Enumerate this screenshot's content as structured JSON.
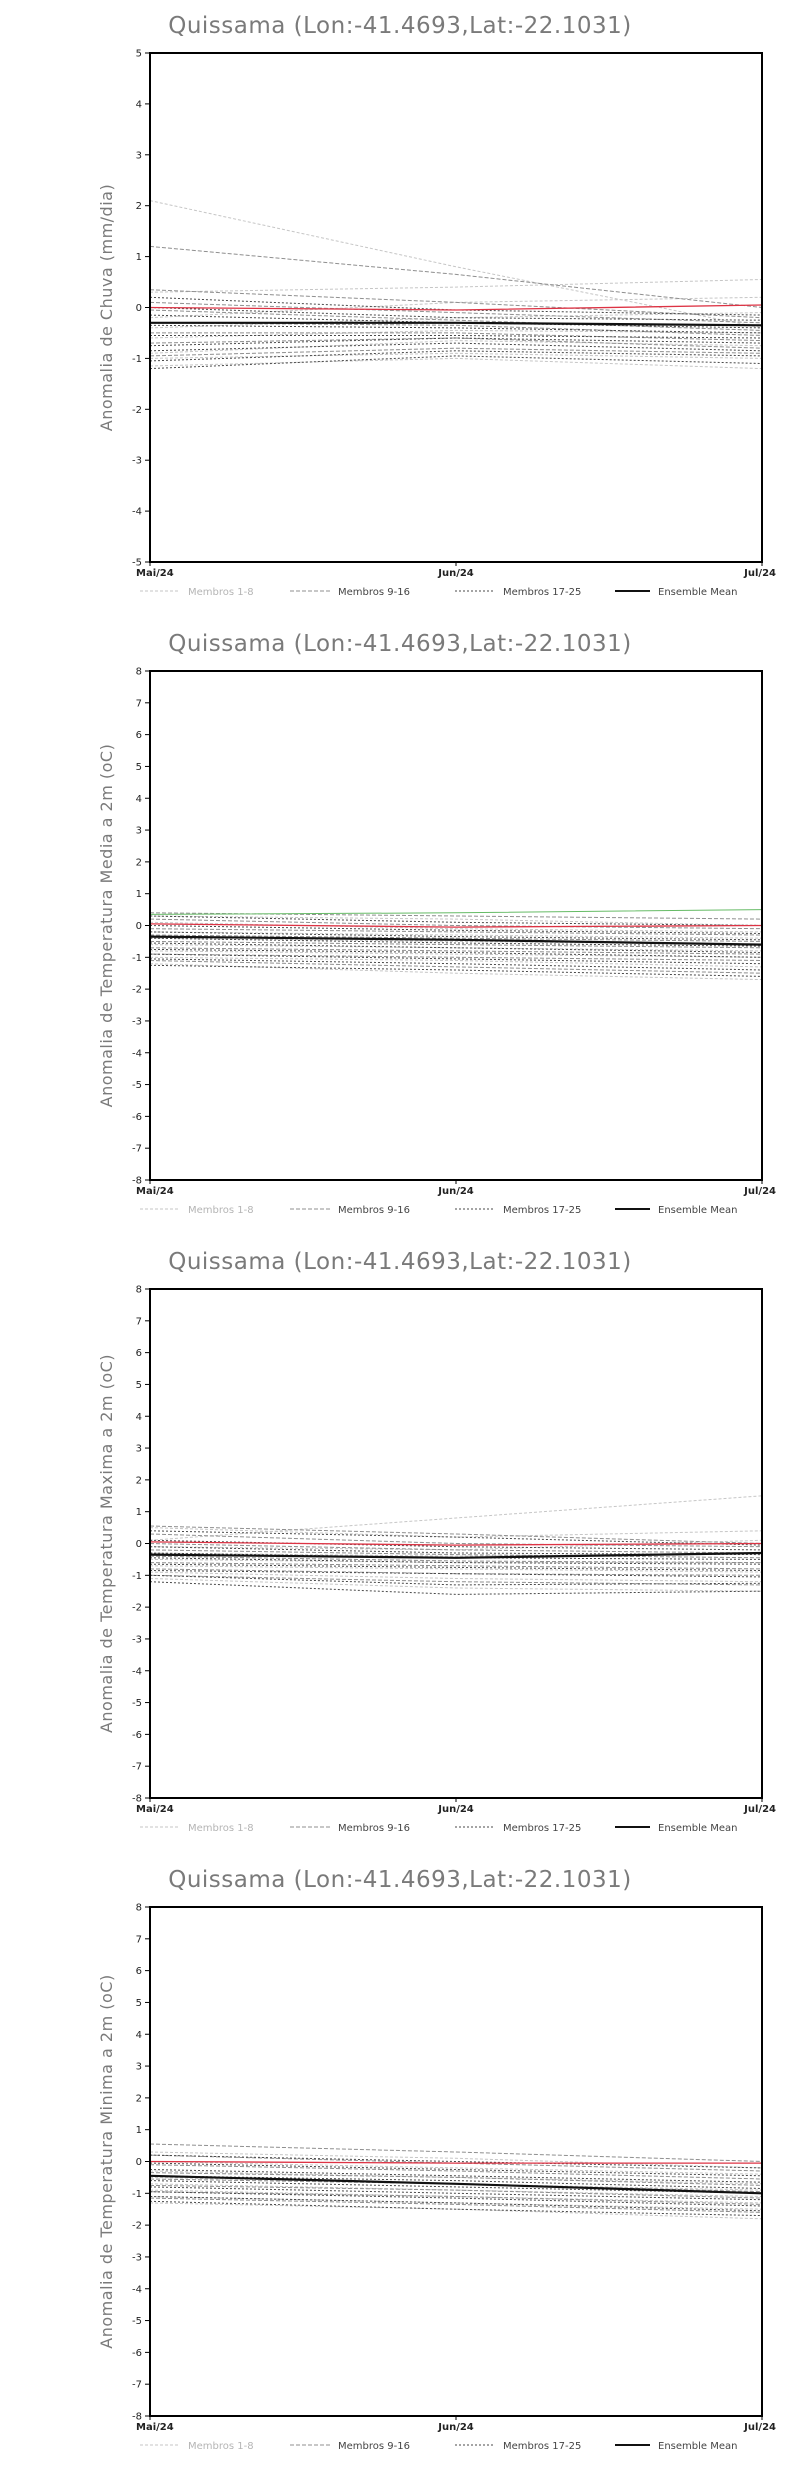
{
  "legend": [
    {
      "label": "Membros 1-8",
      "color": "#c6c6c6"
    },
    {
      "label": "Membros 9-16",
      "color": "#8f8f8f"
    },
    {
      "label": "Membros 17-25",
      "color": "#4a4a4a"
    },
    {
      "label": "Ensemble Mean",
      "color": "#111111"
    }
  ],
  "colors": {
    "ensemble_mean": "#111111",
    "observed": "#dd3344",
    "extra_member": "#66bb66"
  },
  "chart_data": [
    {
      "type": "line",
      "title": "Quissama (Lon:-41.4693,Lat:-22.1031)",
      "ylabel": "Anomalia de Chuva (mm/dia)",
      "x": [
        "Mai/24",
        "Jun/24",
        "Jul/24"
      ],
      "ylim": [
        -5,
        5
      ],
      "yticks": [
        -5,
        -4,
        -3,
        -2,
        -1,
        0,
        1,
        2,
        3,
        4,
        5
      ],
      "grid": false,
      "legend_position": "bottom",
      "series": [
        {
          "group": "1-8",
          "values": [
            2.1,
            0.8,
            -0.4
          ]
        },
        {
          "group": "1-8",
          "values": [
            0.3,
            0.4,
            0.55
          ]
        },
        {
          "group": "1-8",
          "values": [
            -0.2,
            0.1,
            0.2
          ]
        },
        {
          "group": "1-8",
          "values": [
            -0.4,
            -0.2,
            -0.1
          ]
        },
        {
          "group": "1-8",
          "values": [
            -0.6,
            -0.45,
            -0.5
          ]
        },
        {
          "group": "1-8",
          "values": [
            -0.9,
            -0.65,
            -0.75
          ]
        },
        {
          "group": "1-8",
          "values": [
            -1.0,
            -0.9,
            -1.0
          ]
        },
        {
          "group": "1-8",
          "values": [
            -1.15,
            -1.0,
            -1.2
          ]
        },
        {
          "group": "9-16",
          "values": [
            1.2,
            0.65,
            0.0
          ]
        },
        {
          "group": "9-16",
          "values": [
            0.35,
            0.1,
            -0.2
          ]
        },
        {
          "group": "9-16",
          "values": [
            0.1,
            -0.1,
            -0.3
          ]
        },
        {
          "group": "9-16",
          "values": [
            -0.05,
            -0.25,
            -0.45
          ]
        },
        {
          "group": "9-16",
          "values": [
            -0.3,
            -0.35,
            -0.55
          ]
        },
        {
          "group": "9-16",
          "values": [
            -0.5,
            -0.5,
            -0.65
          ]
        },
        {
          "group": "9-16",
          "values": [
            -0.7,
            -0.6,
            -0.8
          ]
        },
        {
          "group": "9-16",
          "values": [
            -0.95,
            -0.8,
            -0.9
          ]
        },
        {
          "group": "17-25",
          "values": [
            0.2,
            -0.05,
            -0.15
          ]
        },
        {
          "group": "17-25",
          "values": [
            0.0,
            -0.2,
            -0.25
          ]
        },
        {
          "group": "17-25",
          "values": [
            -0.15,
            -0.3,
            -0.4
          ]
        },
        {
          "group": "17-25",
          "values": [
            -0.35,
            -0.4,
            -0.5
          ]
        },
        {
          "group": "17-25",
          "values": [
            -0.55,
            -0.55,
            -0.6
          ]
        },
        {
          "group": "17-25",
          "values": [
            -0.75,
            -0.6,
            -0.7
          ]
        },
        {
          "group": "17-25",
          "values": [
            -0.85,
            -0.7,
            -0.85
          ]
        },
        {
          "group": "17-25",
          "values": [
            -1.05,
            -0.85,
            -0.95
          ]
        },
        {
          "group": "17-25",
          "values": [
            -1.2,
            -0.95,
            -1.1
          ]
        },
        {
          "group": "red",
          "values": [
            0.0,
            -0.05,
            0.05
          ]
        },
        {
          "group": "mean",
          "values": [
            -0.3,
            -0.3,
            -0.35
          ]
        }
      ]
    },
    {
      "type": "line",
      "title": "Quissama (Lon:-41.4693,Lat:-22.1031)",
      "ylabel": "Anomalia de Temperatura Media a 2m (oC)",
      "x": [
        "Mai/24",
        "Jun/24",
        "Jul/24"
      ],
      "ylim": [
        -8,
        8
      ],
      "yticks": [
        -8,
        -7,
        -6,
        -5,
        -4,
        -3,
        -2,
        -1,
        0,
        1,
        2,
        3,
        4,
        5,
        6,
        7,
        8
      ],
      "grid": false,
      "legend_position": "bottom",
      "series": [
        {
          "group": "1-8",
          "values": [
            0.3,
            0.2,
            0.0
          ]
        },
        {
          "group": "1-8",
          "values": [
            0.1,
            -0.1,
            -0.2
          ]
        },
        {
          "group": "1-8",
          "values": [
            -0.2,
            -0.3,
            -0.4
          ]
        },
        {
          "group": "1-8",
          "values": [
            -0.4,
            -0.5,
            -0.6
          ]
        },
        {
          "group": "1-8",
          "values": [
            -0.6,
            -0.7,
            -0.8
          ]
        },
        {
          "group": "1-8",
          "values": [
            -0.8,
            -0.9,
            -1.0
          ]
        },
        {
          "group": "1-8",
          "values": [
            -1.0,
            -1.1,
            -1.3
          ]
        },
        {
          "group": "1-8",
          "values": [
            -1.2,
            -1.5,
            -1.7
          ]
        },
        {
          "group": "9-16",
          "values": [
            0.4,
            0.3,
            0.2
          ]
        },
        {
          "group": "9-16",
          "values": [
            0.2,
            0.0,
            -0.1
          ]
        },
        {
          "group": "9-16",
          "values": [
            -0.1,
            -0.2,
            -0.3
          ]
        },
        {
          "group": "9-16",
          "values": [
            -0.3,
            -0.4,
            -0.5
          ]
        },
        {
          "group": "9-16",
          "values": [
            -0.5,
            -0.6,
            -0.7
          ]
        },
        {
          "group": "9-16",
          "values": [
            -0.7,
            -0.8,
            -0.9
          ]
        },
        {
          "group": "9-16",
          "values": [
            -0.9,
            -1.0,
            -1.1
          ]
        },
        {
          "group": "9-16",
          "values": [
            -1.1,
            -1.3,
            -1.5
          ]
        },
        {
          "group": "17-25",
          "values": [
            0.3,
            0.1,
            0.0
          ]
        },
        {
          "group": "17-25",
          "values": [
            0.0,
            -0.15,
            -0.25
          ]
        },
        {
          "group": "17-25",
          "values": [
            -0.2,
            -0.35,
            -0.45
          ]
        },
        {
          "group": "17-25",
          "values": [
            -0.4,
            -0.55,
            -0.65
          ]
        },
        {
          "group": "17-25",
          "values": [
            -0.55,
            -0.7,
            -0.85
          ]
        },
        {
          "group": "17-25",
          "values": [
            -0.75,
            -0.85,
            -1.0
          ]
        },
        {
          "group": "17-25",
          "values": [
            -0.9,
            -1.05,
            -1.2
          ]
        },
        {
          "group": "17-25",
          "values": [
            -1.05,
            -1.2,
            -1.4
          ]
        },
        {
          "group": "17-25",
          "values": [
            -1.25,
            -1.4,
            -1.6
          ]
        },
        {
          "group": "green",
          "values": [
            0.35,
            0.4,
            0.5
          ]
        },
        {
          "group": "red",
          "values": [
            0.05,
            -0.05,
            0.0
          ]
        },
        {
          "group": "mean",
          "values": [
            -0.35,
            -0.45,
            -0.6
          ]
        }
      ]
    },
    {
      "type": "line",
      "title": "Quissama (Lon:-41.4693,Lat:-22.1031)",
      "ylabel": "Anomalia de Temperatura Maxima a 2m (oC)",
      "x": [
        "Mai/24",
        "Jun/24",
        "Jul/24"
      ],
      "ylim": [
        -8,
        8
      ],
      "yticks": [
        -8,
        -7,
        -6,
        -5,
        -4,
        -3,
        -2,
        -1,
        0,
        1,
        2,
        3,
        4,
        5,
        6,
        7,
        8
      ],
      "grid": false,
      "legend_position": "bottom",
      "series": [
        {
          "group": "1-8",
          "values": [
            0.1,
            0.8,
            1.5
          ]
        },
        {
          "group": "1-8",
          "values": [
            0.5,
            0.2,
            0.4
          ]
        },
        {
          "group": "1-8",
          "values": [
            -0.1,
            -0.2,
            0.1
          ]
        },
        {
          "group": "1-8",
          "values": [
            -0.3,
            -0.4,
            -0.3
          ]
        },
        {
          "group": "1-8",
          "values": [
            -0.5,
            -0.6,
            -0.6
          ]
        },
        {
          "group": "1-8",
          "values": [
            -0.7,
            -0.8,
            -0.9
          ]
        },
        {
          "group": "1-8",
          "values": [
            -0.9,
            -1.1,
            -1.2
          ]
        },
        {
          "group": "1-8",
          "values": [
            -1.1,
            -1.4,
            -1.5
          ]
        },
        {
          "group": "9-16",
          "values": [
            0.55,
            0.3,
            0.0
          ]
        },
        {
          "group": "9-16",
          "values": [
            0.3,
            0.0,
            -0.1
          ]
        },
        {
          "group": "9-16",
          "values": [
            0.0,
            -0.2,
            -0.3
          ]
        },
        {
          "group": "9-16",
          "values": [
            -0.2,
            -0.35,
            -0.45
          ]
        },
        {
          "group": "9-16",
          "values": [
            -0.4,
            -0.55,
            -0.6
          ]
        },
        {
          "group": "9-16",
          "values": [
            -0.6,
            -0.7,
            -0.8
          ]
        },
        {
          "group": "9-16",
          "values": [
            -0.8,
            -0.95,
            -1.0
          ]
        },
        {
          "group": "9-16",
          "values": [
            -1.0,
            -1.2,
            -1.3
          ]
        },
        {
          "group": "17-25",
          "values": [
            0.4,
            0.2,
            -0.05
          ]
        },
        {
          "group": "17-25",
          "values": [
            0.1,
            -0.1,
            -0.2
          ]
        },
        {
          "group": "17-25",
          "values": [
            -0.1,
            -0.3,
            -0.35
          ]
        },
        {
          "group": "17-25",
          "values": [
            -0.3,
            -0.45,
            -0.5
          ]
        },
        {
          "group": "17-25",
          "values": [
            -0.45,
            -0.6,
            -0.65
          ]
        },
        {
          "group": "17-25",
          "values": [
            -0.65,
            -0.75,
            -0.85
          ]
        },
        {
          "group": "17-25",
          "values": [
            -0.85,
            -0.95,
            -1.05
          ]
        },
        {
          "group": "17-25",
          "values": [
            -1.0,
            -1.3,
            -1.25
          ]
        },
        {
          "group": "17-25",
          "values": [
            -1.2,
            -1.6,
            -1.5
          ]
        },
        {
          "group": "red",
          "values": [
            0.05,
            -0.05,
            0.0
          ]
        },
        {
          "group": "mean",
          "values": [
            -0.35,
            -0.45,
            -0.3
          ]
        }
      ]
    },
    {
      "type": "line",
      "title": "Quissama (Lon:-41.4693,Lat:-22.1031)",
      "ylabel": "Anomalia de Temperatura Minima a 2m (oC)",
      "x": [
        "Mai/24",
        "Jun/24",
        "Jul/24"
      ],
      "ylim": [
        -8,
        8
      ],
      "yticks": [
        -8,
        -7,
        -6,
        -5,
        -4,
        -3,
        -2,
        -1,
        0,
        1,
        2,
        3,
        4,
        5,
        6,
        7,
        8
      ],
      "grid": false,
      "legend_position": "bottom",
      "series": [
        {
          "group": "1-8",
          "values": [
            0.3,
            0.1,
            -0.2
          ]
        },
        {
          "group": "1-8",
          "values": [
            0.0,
            -0.2,
            -0.4
          ]
        },
        {
          "group": "1-8",
          "values": [
            -0.3,
            -0.5,
            -0.7
          ]
        },
        {
          "group": "1-8",
          "values": [
            -0.5,
            -0.7,
            -0.9
          ]
        },
        {
          "group": "1-8",
          "values": [
            -0.7,
            -0.9,
            -1.1
          ]
        },
        {
          "group": "1-8",
          "values": [
            -0.9,
            -1.1,
            -1.3
          ]
        },
        {
          "group": "1-8",
          "values": [
            -1.1,
            -1.3,
            -1.5
          ]
        },
        {
          "group": "1-8",
          "values": [
            -1.3,
            -1.5,
            -1.8
          ]
        },
        {
          "group": "9-16",
          "values": [
            0.55,
            0.3,
            0.0
          ]
        },
        {
          "group": "9-16",
          "values": [
            0.2,
            -0.05,
            -0.3
          ]
        },
        {
          "group": "9-16",
          "values": [
            -0.1,
            -0.3,
            -0.55
          ]
        },
        {
          "group": "9-16",
          "values": [
            -0.35,
            -0.5,
            -0.75
          ]
        },
        {
          "group": "9-16",
          "values": [
            -0.55,
            -0.7,
            -0.95
          ]
        },
        {
          "group": "9-16",
          "values": [
            -0.75,
            -0.9,
            -1.15
          ]
        },
        {
          "group": "9-16",
          "values": [
            -0.95,
            -1.1,
            -1.35
          ]
        },
        {
          "group": "9-16",
          "values": [
            -1.15,
            -1.35,
            -1.6
          ]
        },
        {
          "group": "17-25",
          "values": [
            0.2,
            0.0,
            -0.2
          ]
        },
        {
          "group": "17-25",
          "values": [
            -0.05,
            -0.25,
            -0.45
          ]
        },
        {
          "group": "17-25",
          "values": [
            -0.25,
            -0.45,
            -0.65
          ]
        },
        {
          "group": "17-25",
          "values": [
            -0.45,
            -0.6,
            -0.85
          ]
        },
        {
          "group": "17-25",
          "values": [
            -0.6,
            -0.8,
            -1.0
          ]
        },
        {
          "group": "17-25",
          "values": [
            -0.8,
            -1.0,
            -1.2
          ]
        },
        {
          "group": "17-25",
          "values": [
            -0.95,
            -1.15,
            -1.4
          ]
        },
        {
          "group": "17-25",
          "values": [
            -1.1,
            -1.3,
            -1.55
          ]
        },
        {
          "group": "17-25",
          "values": [
            -1.25,
            -1.5,
            -1.7
          ]
        },
        {
          "group": "red",
          "values": [
            0.0,
            -0.05,
            -0.05
          ]
        },
        {
          "group": "mean",
          "values": [
            -0.45,
            -0.7,
            -1.0
          ]
        }
      ]
    }
  ]
}
